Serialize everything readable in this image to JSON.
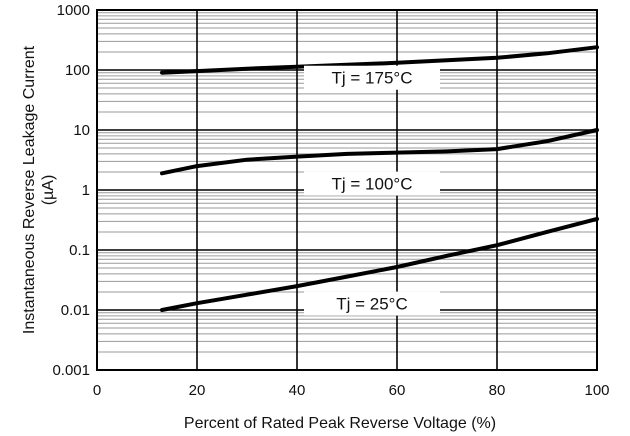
{
  "chart_data": {
    "type": "line",
    "title": "",
    "xlabel": "Percent of Rated Peak Reverse Voltage (%)",
    "ylabel_line1": "Instantaneous Reverse Leakage Current",
    "ylabel_line2": "(µA)",
    "x_scale": "linear",
    "y_scale": "log",
    "xlim": [
      0,
      100
    ],
    "ylim": [
      0.001,
      1000
    ],
    "x_ticks": [
      0,
      20,
      40,
      60,
      80,
      100
    ],
    "x_tick_labels": [
      "0",
      "20",
      "40",
      "60",
      "80",
      "100"
    ],
    "y_ticks": [
      0.001,
      0.01,
      0.1,
      1,
      10,
      100,
      1000
    ],
    "y_tick_labels": [
      "0.001",
      "0.01",
      "0.1",
      "1",
      "10",
      "100",
      "1000"
    ],
    "grid": true,
    "series": [
      {
        "name": "Tj = 175°C",
        "x": [
          13,
          20,
          30,
          40,
          50,
          60,
          70,
          80,
          90,
          100
        ],
        "y": [
          90,
          96,
          105,
          113,
          122,
          132,
          145,
          160,
          190,
          240
        ]
      },
      {
        "name": "Tj = 100°C",
        "x": [
          13,
          20,
          30,
          40,
          50,
          60,
          70,
          80,
          90,
          100
        ],
        "y": [
          1.9,
          2.5,
          3.2,
          3.6,
          4.0,
          4.2,
          4.4,
          4.8,
          6.5,
          10
        ]
      },
      {
        "name": "Tj = 25°C",
        "x": [
          13,
          20,
          30,
          40,
          50,
          60,
          70,
          80,
          90,
          100
        ],
        "y": [
          0.01,
          0.013,
          0.018,
          0.025,
          0.036,
          0.052,
          0.08,
          0.12,
          0.2,
          0.33
        ]
      }
    ]
  },
  "colors": {
    "line": "#000000",
    "minor_grid": "#9a9a9a",
    "background": "#ffffff"
  }
}
